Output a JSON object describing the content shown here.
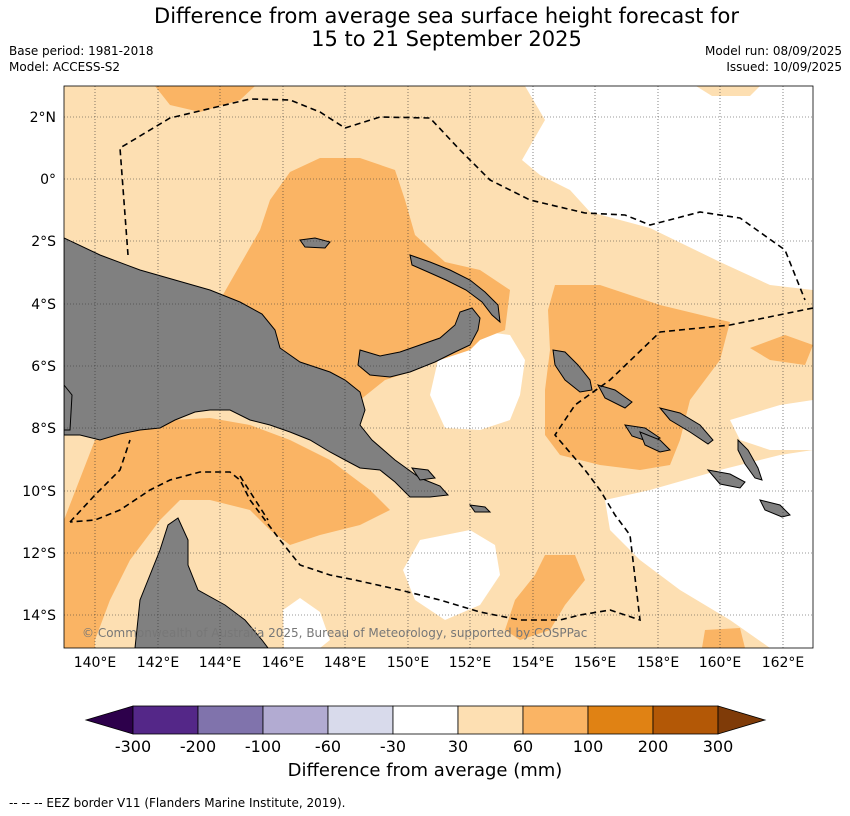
{
  "header": {
    "title_line1": "Difference from average sea surface height forecast for",
    "title_line2": "15 to 21 September 2025",
    "base_period": "Base period: 1981-2018",
    "model": "Model: ACCESS-S2",
    "model_run": "Model run: 08/09/2025",
    "issued": "Issued: 10/09/2025"
  },
  "map": {
    "lon_labels": [
      "140°E",
      "142°E",
      "144°E",
      "146°E",
      "148°E",
      "150°E",
      "152°E",
      "154°E",
      "156°E",
      "158°E",
      "160°E",
      "162°E"
    ],
    "lat_labels": [
      "2°N",
      "0°",
      "2°S",
      "4°S",
      "6°S",
      "8°S",
      "10°S",
      "12°S",
      "14°S"
    ],
    "attribution": "© Commonwealth of Australia 2025, Bureau of Meteorology, supported by COSPPac",
    "colors": {
      "land": "#808080",
      "light_anomaly": "#fddfb2",
      "medium_anomaly": "#fab464",
      "ocean_neutral": "#ffffff"
    }
  },
  "colorbar": {
    "label": "Difference from average (mm)",
    "ticks": [
      "-300",
      "-200",
      "-100",
      "-60",
      "-30",
      "30",
      "60",
      "100",
      "200",
      "300"
    ],
    "colors": [
      "#2d004b",
      "#542788",
      "#8073ac",
      "#b2abd2",
      "#d8daeb",
      "#ffffff",
      "#fddfb2",
      "#fab464",
      "#e08214",
      "#b35806",
      "#7f3b08"
    ]
  },
  "footer": {
    "legend": "--  --  -- EEZ border V11 (Flanders Marine Institute, 2019)."
  }
}
